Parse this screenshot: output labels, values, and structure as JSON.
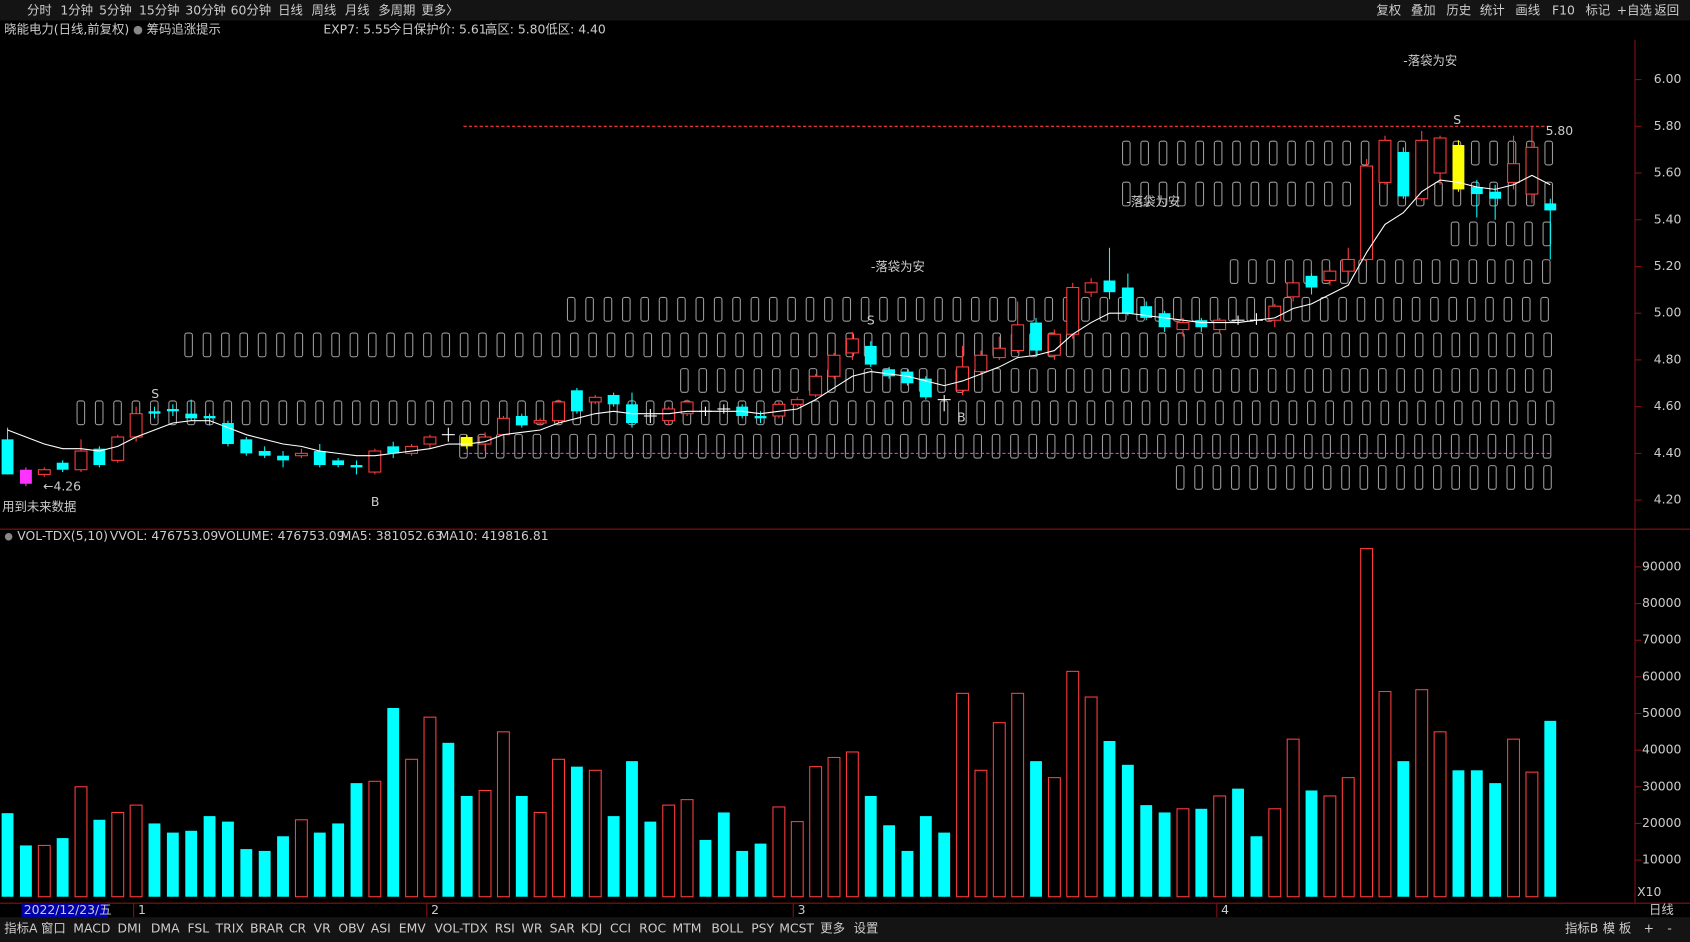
{
  "toolbar": {
    "left": [
      "分时",
      "1分钟",
      "5分钟",
      "15分钟",
      "30分钟",
      "60分钟",
      "日线",
      "周线",
      "月线",
      "多周期",
      "更多〉"
    ],
    "right": [
      "复权",
      "叠加",
      "历史",
      "统计",
      "画线",
      "F10",
      "标记",
      "+自选",
      "返回"
    ]
  },
  "header": {
    "stock": "晓能电力(日线,前复权)",
    "indicator": "筹码追涨提示",
    "values": [
      "EXP7: 5.55",
      "今日保护价: 5.61",
      "高区: 5.80",
      "低区: 4.40"
    ]
  },
  "chart_data": [
    {
      "type": "candlestick",
      "open": [
        4.46,
        4.33,
        4.31,
        4.36,
        4.33,
        4.42,
        4.37,
        4.47,
        4.58,
        4.59,
        4.57,
        4.56,
        4.53,
        4.46,
        4.41,
        4.39,
        4.39,
        4.41,
        4.37,
        4.35,
        4.32,
        4.43,
        4.4,
        4.44,
        4.48,
        4.47,
        4.44,
        4.48,
        4.56,
        4.53,
        4.54,
        4.67,
        4.62,
        4.65,
        4.61,
        4.56,
        4.54,
        4.57,
        4.58,
        4.59,
        4.6,
        4.56,
        4.56,
        4.61,
        4.65,
        4.73,
        4.83,
        4.86,
        4.76,
        4.75,
        4.72,
        4.63,
        4.67,
        4.75,
        4.81,
        4.84,
        4.96,
        4.82,
        4.91,
        5.09,
        5.14,
        5.11,
        5.03,
        5.0,
        4.93,
        4.97,
        4.93,
        4.97,
        4.97,
        4.97,
        5.07,
        5.16,
        5.14,
        5.18,
        5.23,
        5.56,
        5.69,
        5.49,
        5.6,
        5.72,
        5.54,
        5.52,
        5.56,
        5.51,
        5.47
      ],
      "high": [
        4.51,
        4.34,
        4.34,
        4.37,
        4.46,
        4.43,
        4.48,
        4.6,
        4.6,
        4.61,
        4.63,
        4.57,
        4.54,
        4.47,
        4.43,
        4.41,
        4.42,
        4.44,
        4.38,
        4.37,
        4.42,
        4.45,
        4.44,
        4.48,
        4.51,
        4.48,
        4.49,
        4.56,
        4.57,
        4.55,
        4.63,
        4.68,
        4.65,
        4.66,
        4.66,
        4.59,
        4.6,
        4.63,
        4.6,
        4.61,
        4.61,
        4.58,
        4.62,
        4.64,
        4.74,
        4.83,
        4.92,
        4.88,
        4.77,
        4.76,
        4.73,
        4.65,
        4.86,
        4.84,
        4.9,
        5.05,
        4.98,
        4.93,
        5.13,
        5.15,
        5.28,
        5.17,
        5.05,
        5.01,
        4.98,
        4.98,
        4.98,
        4.99,
        5.0,
        5.04,
        5.14,
        5.17,
        5.19,
        5.28,
        5.66,
        5.76,
        5.71,
        5.78,
        5.76,
        5.74,
        5.57,
        5.55,
        5.76,
        5.8,
        5.49
      ],
      "low": [
        4.31,
        4.26,
        4.3,
        4.32,
        4.32,
        4.34,
        4.36,
        4.45,
        4.55,
        4.56,
        4.54,
        4.52,
        4.43,
        4.39,
        4.38,
        4.34,
        4.38,
        4.34,
        4.34,
        4.31,
        4.31,
        4.38,
        4.39,
        4.42,
        4.45,
        4.42,
        4.41,
        4.46,
        4.51,
        4.52,
        4.53,
        4.57,
        4.61,
        4.6,
        4.51,
        4.53,
        4.52,
        4.56,
        4.56,
        4.57,
        4.55,
        4.53,
        4.55,
        4.6,
        4.64,
        4.72,
        4.8,
        4.77,
        4.72,
        4.69,
        4.63,
        4.58,
        4.65,
        4.74,
        4.8,
        4.83,
        4.82,
        4.8,
        4.89,
        5.07,
        5.06,
        4.99,
        4.97,
        4.92,
        4.9,
        4.92,
        4.91,
        4.95,
        4.95,
        4.94,
        5.05,
        5.08,
        5.12,
        5.16,
        5.22,
        5.55,
        5.49,
        5.48,
        5.55,
        5.52,
        5.41,
        5.4,
        5.53,
        5.47,
        5.23
      ],
      "close": [
        4.31,
        4.27,
        4.33,
        4.33,
        4.41,
        4.35,
        4.47,
        4.57,
        4.57,
        4.58,
        4.55,
        4.55,
        4.44,
        4.4,
        4.39,
        4.37,
        4.4,
        4.35,
        4.35,
        4.34,
        4.41,
        4.4,
        4.43,
        4.47,
        4.48,
        4.43,
        4.47,
        4.55,
        4.52,
        4.54,
        4.62,
        4.58,
        4.64,
        4.61,
        4.53,
        4.56,
        4.59,
        4.62,
        4.58,
        4.59,
        4.56,
        4.55,
        4.61,
        4.63,
        4.73,
        4.82,
        4.89,
        4.78,
        4.73,
        4.7,
        4.64,
        4.63,
        4.77,
        4.82,
        4.85,
        4.95,
        4.84,
        4.91,
        5.11,
        5.13,
        5.09,
        5.0,
        4.98,
        4.94,
        4.96,
        4.94,
        4.97,
        4.97,
        4.97,
        5.03,
        5.13,
        5.11,
        5.18,
        5.23,
        5.63,
        5.74,
        5.5,
        5.74,
        5.75,
        5.53,
        5.51,
        5.49,
        5.64,
        5.71,
        5.44
      ],
      "highlight": [
        {
          "index": 1,
          "color": "#ff33ff"
        },
        {
          "index": 25,
          "color": "#ffff00"
        },
        {
          "index": 79,
          "color": "#ffff00"
        }
      ],
      "line": {
        "name": "EXP7",
        "color": "#ffffff",
        "values": [
          4.5,
          4.47,
          4.44,
          4.42,
          4.42,
          4.41,
          4.43,
          4.47,
          4.5,
          4.53,
          4.54,
          4.54,
          4.51,
          4.48,
          4.46,
          4.44,
          4.43,
          4.41,
          4.4,
          4.39,
          4.39,
          4.4,
          4.41,
          4.42,
          4.44,
          4.44,
          4.45,
          4.48,
          4.49,
          4.5,
          4.53,
          4.55,
          4.57,
          4.58,
          4.57,
          4.57,
          4.57,
          4.58,
          4.58,
          4.58,
          4.58,
          4.57,
          4.58,
          4.59,
          4.63,
          4.68,
          4.73,
          4.75,
          4.74,
          4.73,
          4.71,
          4.69,
          4.71,
          4.74,
          4.77,
          4.81,
          4.82,
          4.84,
          4.91,
          4.96,
          5.0,
          5.0,
          4.99,
          4.98,
          4.97,
          4.96,
          4.96,
          4.96,
          4.97,
          4.98,
          5.02,
          5.04,
          5.08,
          5.12,
          5.26,
          5.38,
          5.43,
          5.52,
          5.57,
          5.56,
          5.54,
          5.53,
          5.55,
          5.59,
          5.55
        ]
      },
      "high_zone": 5.8,
      "low_zone": 4.4,
      "ylim": [
        4.08,
        6.17
      ],
      "yticks": [
        {
          "value": 4.2,
          "label": "4.20"
        },
        {
          "value": 4.4,
          "label": "4.40"
        },
        {
          "value": 4.6,
          "label": "4.60"
        },
        {
          "value": 4.8,
          "label": "4.80"
        },
        {
          "value": 5.0,
          "label": "5.00"
        },
        {
          "value": 5.2,
          "label": "5.20"
        },
        {
          "value": 5.4,
          "label": "5.40"
        },
        {
          "value": 5.6,
          "label": "5.60"
        },
        {
          "value": 5.8,
          "label": "5.80"
        },
        {
          "value": 6.0,
          "label": "6.00"
        }
      ],
      "annotations": {
        "max": "5.80",
        "min": "←4.26",
        "note": "用到未来数据",
        "take_profit": "-落袋为安",
        "sell": "S",
        "buy": "B"
      }
    },
    {
      "type": "bar",
      "title": "VOL-TDX(5,10)",
      "stats": [
        "VVOL: 476753.09",
        "VOLUME: 476753.09",
        "MA5: 381052.63",
        "MA10: 419816.81"
      ],
      "values": [
        22800,
        14000,
        14000,
        16000,
        30000,
        21000,
        23000,
        25000,
        20000,
        17500,
        18000,
        22000,
        20500,
        13000,
        12500,
        16500,
        21000,
        17500,
        20000,
        31000,
        31500,
        51500,
        37500,
        49000,
        42000,
        27500,
        29000,
        45000,
        27500,
        23000,
        37500,
        35500,
        34500,
        22000,
        37000,
        20500,
        25000,
        26500,
        15500,
        23000,
        12500,
        14500,
        24500,
        20500,
        35500,
        38000,
        39500,
        27500,
        19500,
        12500,
        22000,
        17500,
        55500,
        34500,
        47500,
        55500,
        37000,
        32500,
        61500,
        54500,
        42500,
        36000,
        25000,
        23000,
        24000,
        24000,
        27500,
        29500,
        16500,
        24000,
        43000,
        29000,
        27500,
        32500,
        95000,
        56000,
        37000,
        56500,
        45000,
        34500,
        34500,
        31000,
        43000,
        34000,
        48000
      ],
      "ylim": [
        0,
        100000
      ],
      "yticks": [
        10000,
        20000,
        30000,
        40000,
        50000,
        60000,
        70000,
        80000,
        90000
      ],
      "scale_note": "X10"
    }
  ],
  "footer": {
    "date": "2022/12/23/五",
    "months": [
      "1",
      "2",
      "3",
      "4"
    ],
    "tabs": [
      "指标A",
      "窗口",
      "MACD",
      "DMI",
      "DMA",
      "FSL",
      "TRIX",
      "BRAR",
      "CR",
      "VR",
      "OBV",
      "ASI",
      "EMV",
      "VOL-TDX",
      "RSI",
      "WR",
      "SAR",
      "KDJ",
      "CCI",
      "ROC",
      "MTM",
      "BOLL",
      "PSY",
      "MCST",
      "更多",
      "设置"
    ],
    "right_tabs": [
      "指标B",
      "模",
      "板",
      "+",
      "-"
    ],
    "period": "日线"
  }
}
